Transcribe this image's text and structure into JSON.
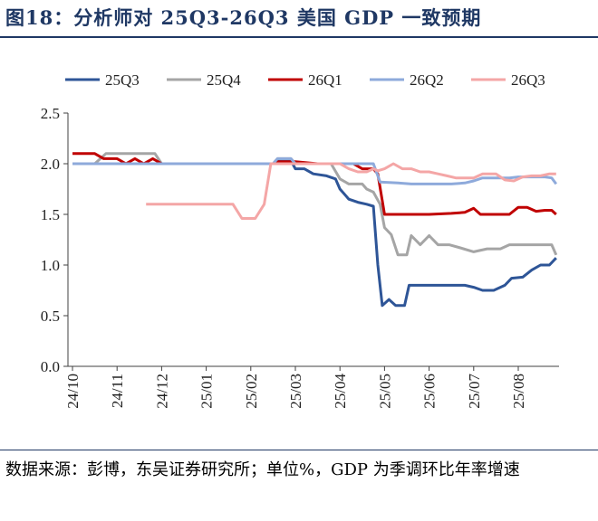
{
  "title": "图18：分析师对 25Q3-26Q3 美国 GDP 一致预期",
  "source": "数据来源：彭博，东吴证券研究所；单位%，GDP 为季调环比年率增速",
  "chart_data": {
    "type": "line",
    "y_ticks": [
      "0.0",
      "0.5",
      "1.0",
      "1.5",
      "2.0",
      "2.5"
    ],
    "ylim": [
      0,
      2.5
    ],
    "x_ticks": [
      "24/10",
      "24/11",
      "24/12",
      "25/01",
      "25/02",
      "25/03",
      "25/04",
      "25/05",
      "25/06",
      "25/07",
      "25/08"
    ],
    "xlim": [
      0,
      10.85
    ],
    "legend_position": "top",
    "grid": false,
    "series": [
      {
        "name": "25Q3",
        "color": "#2e5597",
        "points": [
          [
            0,
            2.0
          ],
          [
            0.5,
            2.0
          ],
          [
            1.0,
            2.0
          ],
          [
            1.5,
            2.0
          ],
          [
            2.0,
            2.0
          ],
          [
            2.5,
            2.0
          ],
          [
            3.0,
            2.0
          ],
          [
            3.5,
            2.0
          ],
          [
            4.0,
            2.0
          ],
          [
            4.5,
            2.0
          ],
          [
            4.6,
            2.03
          ],
          [
            4.9,
            2.03
          ],
          [
            5.0,
            1.95
          ],
          [
            5.2,
            1.95
          ],
          [
            5.4,
            1.9
          ],
          [
            5.7,
            1.88
          ],
          [
            5.9,
            1.85
          ],
          [
            6.0,
            1.75
          ],
          [
            6.2,
            1.65
          ],
          [
            6.4,
            1.62
          ],
          [
            6.6,
            1.6
          ],
          [
            6.75,
            1.58
          ],
          [
            6.85,
            1.0
          ],
          [
            6.95,
            0.6
          ],
          [
            7.1,
            0.66
          ],
          [
            7.25,
            0.6
          ],
          [
            7.45,
            0.6
          ],
          [
            7.55,
            0.8
          ],
          [
            8.0,
            0.8
          ],
          [
            8.5,
            0.8
          ],
          [
            8.8,
            0.8
          ],
          [
            9.0,
            0.78
          ],
          [
            9.2,
            0.75
          ],
          [
            9.45,
            0.75
          ],
          [
            9.7,
            0.8
          ],
          [
            9.85,
            0.87
          ],
          [
            10.1,
            0.88
          ],
          [
            10.3,
            0.95
          ],
          [
            10.5,
            1.0
          ],
          [
            10.7,
            1.0
          ],
          [
            10.85,
            1.07
          ]
        ]
      },
      {
        "name": "25Q4",
        "color": "#a5a5a5",
        "points": [
          [
            0,
            2.0
          ],
          [
            0.5,
            2.0
          ],
          [
            0.75,
            2.1
          ],
          [
            1.0,
            2.1
          ],
          [
            1.5,
            2.1
          ],
          [
            1.85,
            2.1
          ],
          [
            2.0,
            2.0
          ],
          [
            2.5,
            2.0
          ],
          [
            3.0,
            2.0
          ],
          [
            3.5,
            2.0
          ],
          [
            4.0,
            2.0
          ],
          [
            4.5,
            2.0
          ],
          [
            4.6,
            2.05
          ],
          [
            4.9,
            2.05
          ],
          [
            5.0,
            2.0
          ],
          [
            5.5,
            2.0
          ],
          [
            5.8,
            2.0
          ],
          [
            6.0,
            1.85
          ],
          [
            6.2,
            1.8
          ],
          [
            6.5,
            1.8
          ],
          [
            6.6,
            1.75
          ],
          [
            6.75,
            1.72
          ],
          [
            6.9,
            1.6
          ],
          [
            7.0,
            1.37
          ],
          [
            7.15,
            1.3
          ],
          [
            7.3,
            1.1
          ],
          [
            7.5,
            1.1
          ],
          [
            7.6,
            1.29
          ],
          [
            7.8,
            1.2
          ],
          [
            8.0,
            1.29
          ],
          [
            8.2,
            1.2
          ],
          [
            8.45,
            1.2
          ],
          [
            8.7,
            1.17
          ],
          [
            9.0,
            1.13
          ],
          [
            9.3,
            1.16
          ],
          [
            9.6,
            1.16
          ],
          [
            9.8,
            1.2
          ],
          [
            10.0,
            1.2
          ],
          [
            10.6,
            1.2
          ],
          [
            10.75,
            1.2
          ],
          [
            10.85,
            1.1
          ]
        ]
      },
      {
        "name": "26Q1",
        "color": "#c00000",
        "points": [
          [
            0,
            2.1
          ],
          [
            0.5,
            2.1
          ],
          [
            0.7,
            2.05
          ],
          [
            1.0,
            2.05
          ],
          [
            1.2,
            2.0
          ],
          [
            1.4,
            2.05
          ],
          [
            1.6,
            2.0
          ],
          [
            1.8,
            2.05
          ],
          [
            2.0,
            2.0
          ],
          [
            2.5,
            2.0
          ],
          [
            3.0,
            2.0
          ],
          [
            3.5,
            2.0
          ],
          [
            4.0,
            2.0
          ],
          [
            4.5,
            2.0
          ],
          [
            4.6,
            2.02
          ],
          [
            5.0,
            2.02
          ],
          [
            5.5,
            2.0
          ],
          [
            6.0,
            2.0
          ],
          [
            6.3,
            2.0
          ],
          [
            6.5,
            1.95
          ],
          [
            6.75,
            1.95
          ],
          [
            6.85,
            1.9
          ],
          [
            7.0,
            1.5
          ],
          [
            7.5,
            1.5
          ],
          [
            8.0,
            1.5
          ],
          [
            8.5,
            1.51
          ],
          [
            8.8,
            1.52
          ],
          [
            9.0,
            1.56
          ],
          [
            9.15,
            1.5
          ],
          [
            9.5,
            1.5
          ],
          [
            9.8,
            1.5
          ],
          [
            10.0,
            1.57
          ],
          [
            10.2,
            1.57
          ],
          [
            10.4,
            1.53
          ],
          [
            10.6,
            1.54
          ],
          [
            10.75,
            1.54
          ],
          [
            10.85,
            1.5
          ]
        ]
      },
      {
        "name": "26Q2",
        "color": "#8eaadb",
        "points": [
          [
            0,
            2.0
          ],
          [
            1.0,
            2.0
          ],
          [
            2.0,
            2.0
          ],
          [
            3.0,
            2.0
          ],
          [
            4.0,
            2.0
          ],
          [
            4.5,
            2.0
          ],
          [
            4.6,
            2.05
          ],
          [
            4.9,
            2.05
          ],
          [
            5.0,
            2.0
          ],
          [
            5.5,
            2.0
          ],
          [
            6.0,
            2.0
          ],
          [
            6.5,
            2.0
          ],
          [
            6.75,
            2.0
          ],
          [
            6.9,
            1.82
          ],
          [
            7.3,
            1.81
          ],
          [
            7.6,
            1.8
          ],
          [
            8.0,
            1.8
          ],
          [
            8.5,
            1.8
          ],
          [
            8.8,
            1.81
          ],
          [
            9.0,
            1.83
          ],
          [
            9.2,
            1.86
          ],
          [
            9.5,
            1.86
          ],
          [
            9.8,
            1.86
          ],
          [
            10.0,
            1.87
          ],
          [
            10.2,
            1.87
          ],
          [
            10.4,
            1.87
          ],
          [
            10.6,
            1.87
          ],
          [
            10.75,
            1.86
          ],
          [
            10.85,
            1.8
          ]
        ]
      },
      {
        "name": "26Q3",
        "color": "#f4a6a6",
        "points": [
          [
            1.65,
            1.6
          ],
          [
            2.0,
            1.6
          ],
          [
            2.5,
            1.6
          ],
          [
            3.0,
            1.6
          ],
          [
            3.3,
            1.6
          ],
          [
            3.6,
            1.6
          ],
          [
            3.8,
            1.46
          ],
          [
            4.1,
            1.46
          ],
          [
            4.3,
            1.6
          ],
          [
            4.45,
            2.0
          ],
          [
            5.0,
            2.0
          ],
          [
            5.5,
            2.0
          ],
          [
            6.0,
            2.0
          ],
          [
            6.2,
            1.95
          ],
          [
            6.4,
            1.92
          ],
          [
            6.6,
            1.92
          ],
          [
            6.75,
            1.95
          ],
          [
            6.85,
            1.93
          ],
          [
            7.0,
            1.95
          ],
          [
            7.2,
            2.0
          ],
          [
            7.4,
            1.95
          ],
          [
            7.6,
            1.95
          ],
          [
            7.8,
            1.92
          ],
          [
            8.0,
            1.92
          ],
          [
            8.2,
            1.9
          ],
          [
            8.4,
            1.88
          ],
          [
            8.6,
            1.86
          ],
          [
            8.8,
            1.86
          ],
          [
            9.0,
            1.86
          ],
          [
            9.2,
            1.9
          ],
          [
            9.5,
            1.9
          ],
          [
            9.7,
            1.84
          ],
          [
            9.9,
            1.83
          ],
          [
            10.1,
            1.87
          ],
          [
            10.3,
            1.88
          ],
          [
            10.5,
            1.88
          ],
          [
            10.7,
            1.9
          ],
          [
            10.85,
            1.9
          ]
        ]
      }
    ]
  }
}
